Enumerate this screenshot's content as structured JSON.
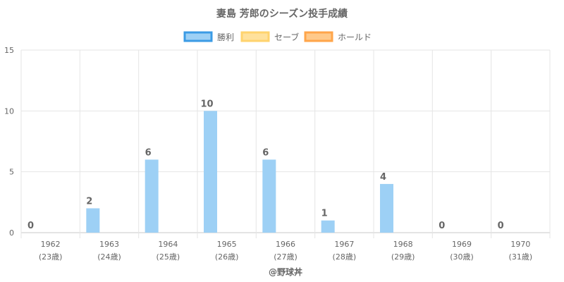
{
  "chart_data": {
    "type": "bar",
    "title": "妻島 芳郎のシーズン投手成績",
    "footer": "@野球丼",
    "categories": [
      "1962",
      "1963",
      "1964",
      "1965",
      "1966",
      "1967",
      "1968",
      "1969",
      "1970"
    ],
    "category_sublabels": [
      "(23歳)",
      "(24歳)",
      "(25歳)",
      "(26歳)",
      "(27歳)",
      "(28歳)",
      "(29歳)",
      "(30歳)",
      "(31歳)"
    ],
    "series": [
      {
        "name": "勝利",
        "values": [
          0,
          2,
          6,
          10,
          6,
          1,
          4,
          0,
          0
        ],
        "fill": "#9dd0f5",
        "border": "#3b9be5"
      },
      {
        "name": "セーブ",
        "values": [
          0,
          0,
          0,
          0,
          0,
          0,
          0,
          0,
          0
        ],
        "fill": "#ffe19c",
        "border": "#ffd36e"
      },
      {
        "name": "ホールド",
        "values": [
          0,
          0,
          0,
          0,
          0,
          0,
          0,
          0,
          0
        ],
        "fill": "#ffc98a",
        "border": "#ffa54a"
      }
    ],
    "data_labels": [
      "0",
      "2",
      "6",
      "10",
      "6",
      "1",
      "4",
      "0",
      "0"
    ],
    "ylim": [
      0,
      15
    ],
    "yticks": [
      0,
      5,
      10,
      15
    ],
    "grid": true,
    "legend": "top-center",
    "colors": {
      "grid": "#e5e5e5",
      "axis": "#c8c8c8",
      "tick_text": "#666666",
      "title": "#666666",
      "data_label": "#666666"
    }
  }
}
